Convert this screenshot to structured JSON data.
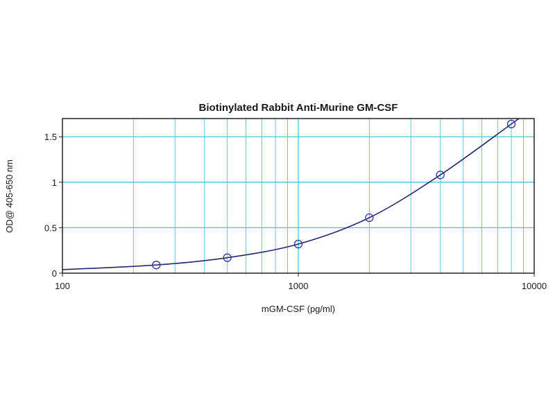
{
  "chart_data": {
    "type": "scatter",
    "title": "Biotinylated Rabbit Anti-Murine GM-CSF",
    "xlabel": "mGM-CSF (pg/ml)",
    "ylabel": "OD@ 405-650 nm",
    "x_scale": "log",
    "xlim": [
      100,
      10000
    ],
    "ylim": [
      0,
      1.7
    ],
    "x_ticks": [
      {
        "value": 100,
        "label": "100"
      },
      {
        "value": 1000,
        "label": "1000"
      },
      {
        "value": 10000,
        "label": "10000"
      }
    ],
    "y_ticks": [
      {
        "value": 0,
        "label": "0"
      },
      {
        "value": 0.5,
        "label": "0.5"
      },
      {
        "value": 1,
        "label": "1"
      },
      {
        "value": 1.5,
        "label": "1.5"
      }
    ],
    "grid": true,
    "series": [
      {
        "points": [
          {
            "x": 250,
            "y": 0.09
          },
          {
            "x": 500,
            "y": 0.17
          },
          {
            "x": 1000,
            "y": 0.32
          },
          {
            "x": 2000,
            "y": 0.61
          },
          {
            "x": 4000,
            "y": 1.08
          },
          {
            "x": 8000,
            "y": 1.64
          }
        ],
        "fit_curve": true,
        "marker": "open-circle",
        "color": "#2a36a0"
      }
    ],
    "colors": {
      "grid": "#4fc3d9",
      "curve": "#1f2a6e",
      "frame": "#222222"
    }
  }
}
